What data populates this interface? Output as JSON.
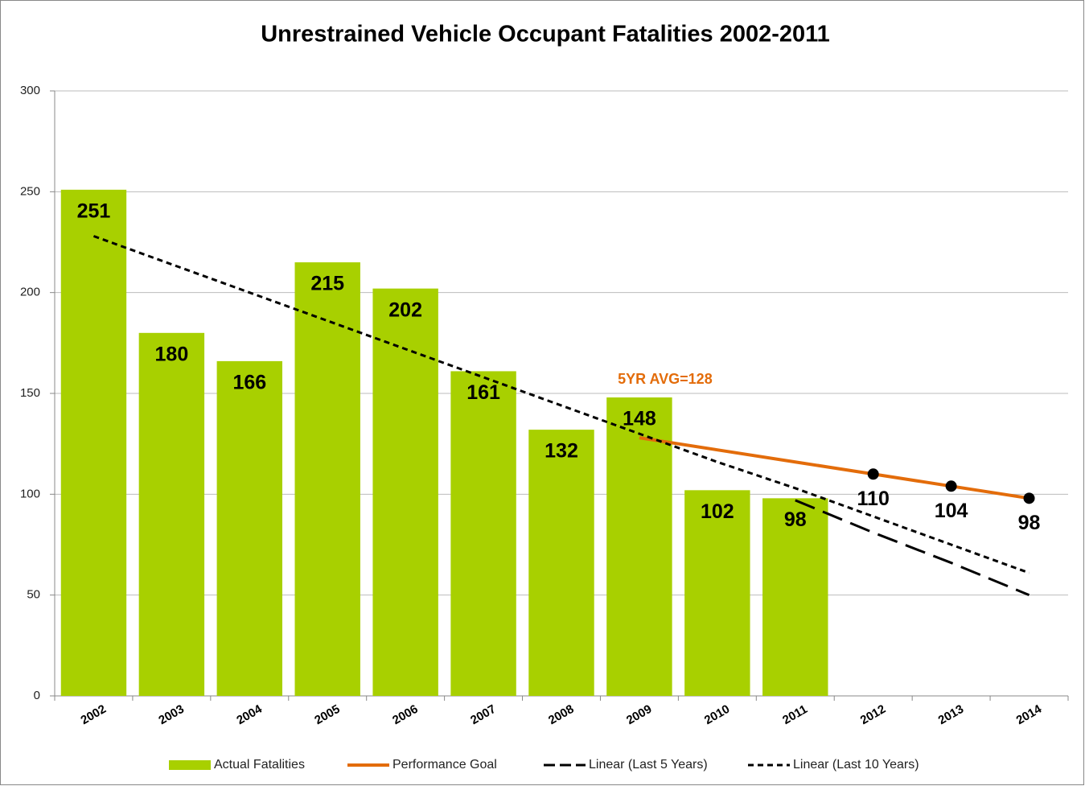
{
  "chart_data": {
    "type": "bar",
    "title": "Unrestrained Vehicle Occupant Fatalities 2002-2011",
    "categories": [
      "2002",
      "2003",
      "2004",
      "2005",
      "2006",
      "2007",
      "2008",
      "2009",
      "2010",
      "2011",
      "2012",
      "2013",
      "2014"
    ],
    "ylim": [
      0,
      300
    ],
    "yticks": [
      0,
      50,
      100,
      150,
      200,
      250,
      300
    ],
    "grid": true,
    "legend": "bottom",
    "annotation": "5YR AVG=128",
    "series": [
      {
        "name": "Actual Fatalities",
        "type": "bar",
        "color": "#a8d000",
        "values": [
          251,
          180,
          166,
          215,
          202,
          161,
          132,
          148,
          102,
          98,
          null,
          null,
          null
        ]
      },
      {
        "name": "Performance Goal",
        "type": "line",
        "color": "#e36c0a",
        "style": "solid",
        "values": [
          null,
          null,
          null,
          null,
          null,
          null,
          null,
          128,
          122,
          116,
          110,
          104,
          98
        ],
        "markers": [
          false,
          false,
          false,
          false,
          false,
          false,
          false,
          false,
          false,
          false,
          true,
          true,
          true
        ]
      },
      {
        "name": "Linear (Last 5 Years)",
        "type": "line",
        "color": "#000000",
        "style": "long-dash",
        "values": [
          null,
          null,
          null,
          null,
          null,
          null,
          null,
          null,
          null,
          97,
          81,
          66,
          50
        ]
      },
      {
        "name": "Linear (Last 10 Years)",
        "type": "line",
        "color": "#000000",
        "style": "short-dash",
        "values": [
          228,
          214,
          200,
          186,
          172,
          158,
          144,
          130,
          116,
          103,
          89,
          75,
          61
        ]
      }
    ]
  }
}
